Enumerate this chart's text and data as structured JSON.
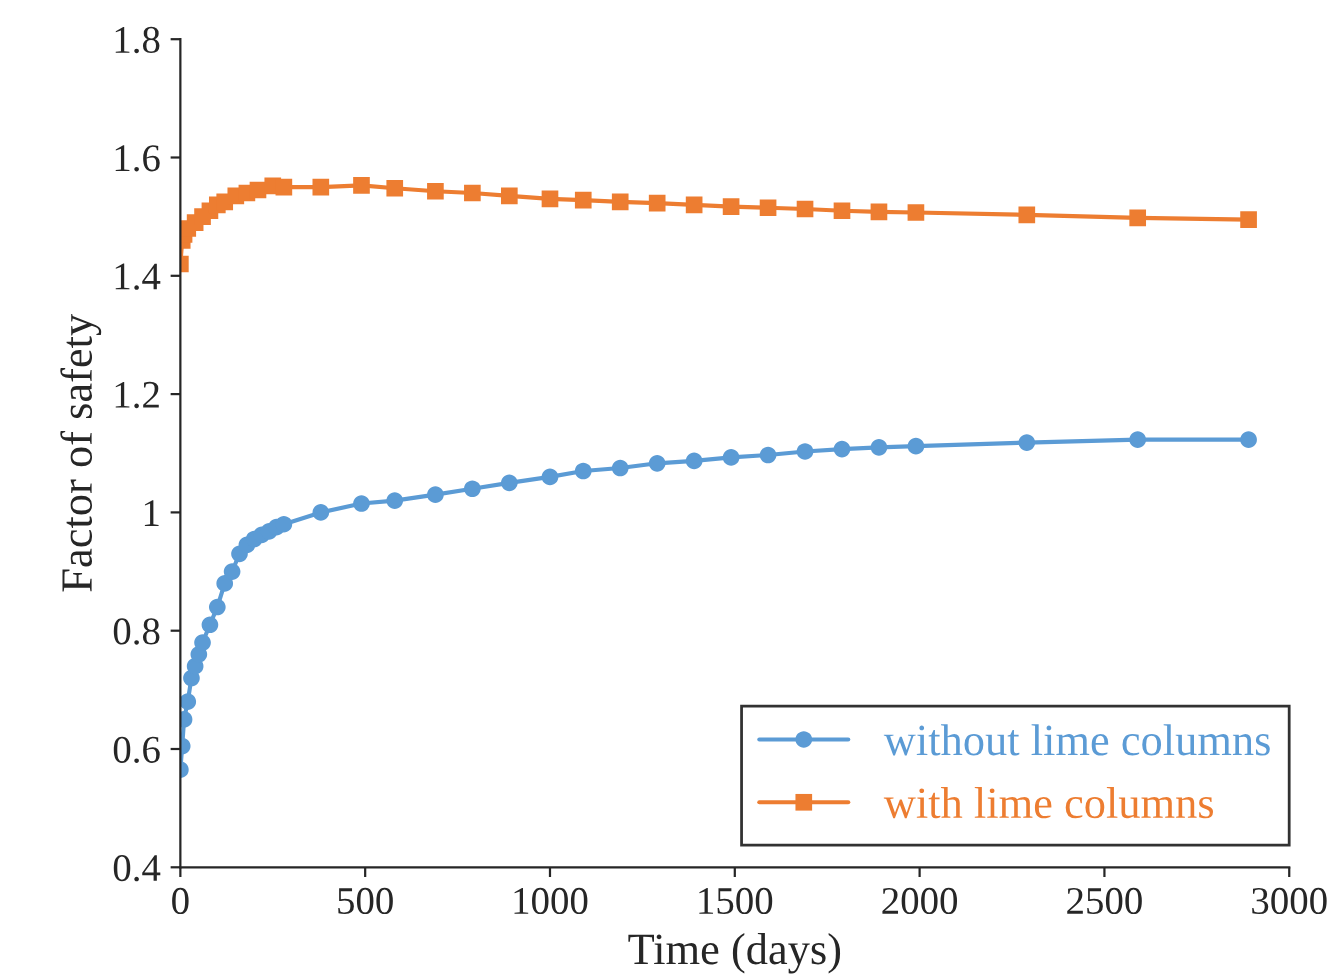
{
  "chart_data": {
    "type": "line",
    "xlabel": "Time (days)",
    "ylabel": "Factor of safety",
    "xlim": [
      0,
      3000
    ],
    "xticks": [
      0,
      500,
      1000,
      1500,
      2000,
      2500,
      3000
    ],
    "ylim": [
      0.4,
      1.8
    ],
    "yticks": [
      0.4,
      0.6,
      0.8,
      1,
      1.2,
      1.4,
      1.6,
      1.8
    ],
    "grid": false,
    "legend": "bottom right",
    "series": [
      {
        "name": "without lime columns",
        "color": "#5b9bd5",
        "marker": "circle",
        "x": [
          0,
          5,
          10,
          20,
          30,
          40,
          50,
          60,
          80,
          100,
          120,
          140,
          160,
          180,
          200,
          220,
          240,
          260,
          280,
          380,
          490,
          580,
          690,
          790,
          890,
          1000,
          1090,
          1190,
          1290,
          1390,
          1490,
          1590,
          1690,
          1790,
          1890,
          1990,
          2290,
          2590,
          2890
        ],
        "values": [
          0.565,
          0.605,
          0.65,
          0.68,
          0.72,
          0.74,
          0.76,
          0.78,
          0.81,
          0.84,
          0.88,
          0.9,
          0.93,
          0.945,
          0.955,
          0.962,
          0.968,
          0.975,
          0.98,
          1.0,
          1.015,
          1.02,
          1.03,
          1.04,
          1.05,
          1.06,
          1.07,
          1.075,
          1.083,
          1.087,
          1.093,
          1.097,
          1.103,
          1.107,
          1.11,
          1.112,
          1.118,
          1.123,
          1.123
        ]
      },
      {
        "name": "with lime columns",
        "color": "#ed7d31",
        "marker": "square",
        "x": [
          0,
          5,
          10,
          20,
          40,
          60,
          80,
          100,
          120,
          150,
          180,
          210,
          250,
          280,
          380,
          490,
          580,
          690,
          790,
          890,
          1000,
          1090,
          1190,
          1290,
          1390,
          1490,
          1590,
          1690,
          1790,
          1890,
          1990,
          2290,
          2590,
          2890
        ],
        "values": [
          1.42,
          1.46,
          1.47,
          1.48,
          1.49,
          1.5,
          1.51,
          1.52,
          1.525,
          1.535,
          1.54,
          1.545,
          1.552,
          1.55,
          1.55,
          1.553,
          1.548,
          1.543,
          1.54,
          1.535,
          1.53,
          1.528,
          1.525,
          1.523,
          1.52,
          1.517,
          1.515,
          1.513,
          1.51,
          1.508,
          1.507,
          1.503,
          1.498,
          1.495
        ]
      }
    ]
  }
}
